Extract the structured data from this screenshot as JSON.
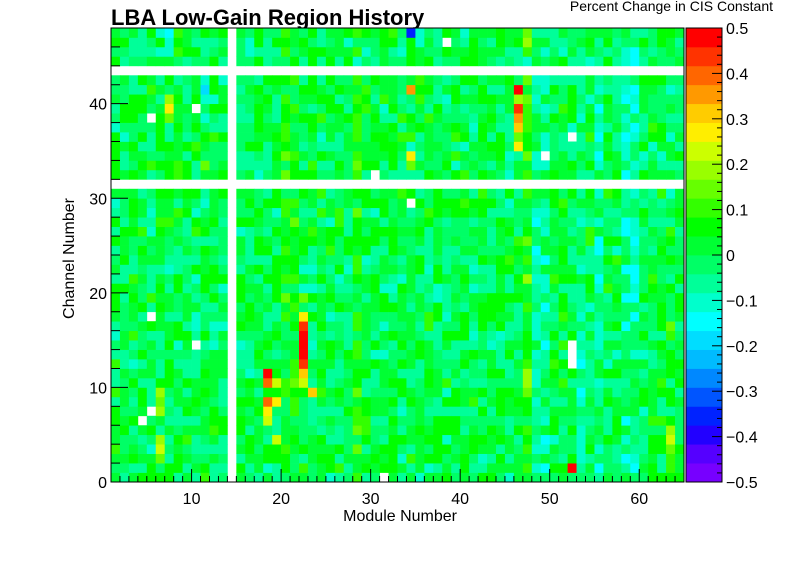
{
  "chart_data": {
    "type": "heatmap",
    "title": "LBA Low-Gain Region History",
    "xlabel": "Module Number",
    "ylabel": "Channel Number",
    "zlabel": "Percent Change in CIS Constant",
    "x_range": [
      1,
      65
    ],
    "y_range": [
      0,
      48
    ],
    "z_range": [
      -0.5,
      0.5
    ],
    "x_ticks": [
      "10",
      "20",
      "30",
      "40",
      "50",
      "60"
    ],
    "y_ticks": [
      "0",
      "10",
      "20",
      "30",
      "40"
    ],
    "z_ticks": [
      "0.5",
      "0.4",
      "0.3",
      "0.2",
      "0.1",
      "0",
      "−0.1",
      "−0.2",
      "−0.3",
      "−0.4",
      "−0.5"
    ],
    "palette": [
      "#7700ff",
      "#5500ff",
      "#2200ff",
      "#0022ff",
      "#0055ff",
      "#0088ff",
      "#00bbff",
      "#00ddff",
      "#00ffff",
      "#00ffcc",
      "#00ff99",
      "#00ff66",
      "#00ff33",
      "#00ff00",
      "#33ff00",
      "#66ff00",
      "#99ff00",
      "#ccff00",
      "#ffee00",
      "#ffcc00",
      "#ff9900",
      "#ff6600",
      "#ff3300",
      "#ff0000"
    ],
    "empty_modules": [
      14
    ],
    "empty_channels": [
      31,
      43
    ],
    "baseline_value": 0.0,
    "module_base_values": [
      {
        "module": 20,
        "value": 0.05
      },
      {
        "module": 21,
        "value": 0.04
      },
      {
        "module": 28,
        "value": 0.06
      },
      {
        "module": 47,
        "value": 0.08
      },
      {
        "module": 48,
        "value": -0.05
      },
      {
        "module": 49,
        "value": -0.05
      },
      {
        "module": 53,
        "value": -0.05
      },
      {
        "module": 55,
        "value": -0.06
      },
      {
        "module": 58,
        "value": -0.07
      },
      {
        "module": 59,
        "value": -0.07
      }
    ],
    "cells": [
      {
        "module": 22,
        "channel": 14,
        "value": 0.5
      },
      {
        "module": 22,
        "channel": 15,
        "value": 0.5
      },
      {
        "module": 22,
        "channel": 16,
        "value": 0.45
      },
      {
        "module": 22,
        "channel": 13,
        "value": 0.48
      },
      {
        "module": 22,
        "channel": 12,
        "value": 0.42
      },
      {
        "module": 22,
        "channel": 11,
        "value": 0.3
      },
      {
        "module": 22,
        "channel": 10,
        "value": 0.22
      },
      {
        "module": 22,
        "channel": 17,
        "value": 0.25
      },
      {
        "module": 22,
        "channel": 20,
        "value": -0.12
      },
      {
        "module": 22,
        "channel": 19,
        "value": 0.15
      },
      {
        "module": 23,
        "channel": 9,
        "value": 0.3
      },
      {
        "module": 18,
        "channel": 11,
        "value": 0.48
      },
      {
        "module": 18,
        "channel": 10,
        "value": 0.38
      },
      {
        "module": 18,
        "channel": 8,
        "value": 0.4
      },
      {
        "module": 18,
        "channel": 7,
        "value": 0.28
      },
      {
        "module": 18,
        "channel": 6,
        "value": 0.22
      },
      {
        "module": 19,
        "channel": 10,
        "value": 0.22
      },
      {
        "module": 19,
        "channel": 8,
        "value": 0.25
      },
      {
        "module": 19,
        "channel": 4,
        "value": 0.22
      },
      {
        "module": 19,
        "channel": 1,
        "value": -0.08
      },
      {
        "module": 18,
        "channel": 1,
        "value": -0.1
      },
      {
        "module": 46,
        "channel": 41,
        "value": 0.5
      },
      {
        "module": 46,
        "channel": 39,
        "value": 0.45
      },
      {
        "module": 46,
        "channel": 38,
        "value": 0.35
      },
      {
        "module": 46,
        "channel": 37,
        "value": 0.3
      },
      {
        "module": 46,
        "channel": 35,
        "value": 0.25
      },
      {
        "module": 46,
        "channel": 40,
        "value": 0.2
      },
      {
        "module": 46,
        "channel": 36,
        "value": 0.15
      },
      {
        "module": 47,
        "channel": 44,
        "value": -0.12
      },
      {
        "module": 47,
        "channel": 11,
        "value": 0.2
      },
      {
        "module": 47,
        "channel": 10,
        "value": 0.18
      },
      {
        "module": 47,
        "channel": 12,
        "value": 0.12
      },
      {
        "module": 34,
        "channel": 47,
        "value": -0.35
      },
      {
        "module": 34,
        "channel": 41,
        "value": 0.35
      },
      {
        "module": 34,
        "channel": 35,
        "value": -0.1
      },
      {
        "module": 34,
        "channel": 34,
        "value": 0.25
      },
      {
        "module": 34,
        "channel": 33,
        "value": 0.15
      },
      {
        "module": 28,
        "channel": 44,
        "value": -0.12
      },
      {
        "module": 28,
        "channel": 42,
        "value": 0.1
      },
      {
        "module": 28,
        "channel": 38,
        "value": 0.12
      },
      {
        "module": 28,
        "channel": 37,
        "value": 0.1
      },
      {
        "module": 28,
        "channel": 34,
        "value": 0.12
      },
      {
        "module": 7,
        "channel": 47,
        "value": -0.15
      },
      {
        "module": 7,
        "channel": 46,
        "value": -0.1
      },
      {
        "module": 7,
        "channel": 40,
        "value": 0.2
      },
      {
        "module": 7,
        "channel": 39,
        "value": 0.25
      },
      {
        "module": 7,
        "channel": 38,
        "value": 0.15
      },
      {
        "module": 11,
        "channel": 41,
        "value": -0.18
      },
      {
        "module": 11,
        "channel": 40,
        "value": -0.1
      },
      {
        "module": 11,
        "channel": 33,
        "value": 0.15
      },
      {
        "module": 6,
        "channel": 9,
        "value": 0.2
      },
      {
        "module": 6,
        "channel": 8,
        "value": 0.15
      },
      {
        "module": 6,
        "channel": 7,
        "value": 0.2
      },
      {
        "module": 6,
        "channel": 4,
        "value": 0.18
      },
      {
        "module": 6,
        "channel": 3,
        "value": 0.22
      },
      {
        "module": 6,
        "channel": 2,
        "value": 0.15
      },
      {
        "module": 52,
        "channel": 1,
        "value": 0.5
      },
      {
        "module": 55,
        "channel": 15,
        "value": -0.12
      },
      {
        "module": 55,
        "channel": 14,
        "value": -0.1
      },
      {
        "module": 63,
        "channel": 5,
        "value": 0.2
      },
      {
        "module": 63,
        "channel": 4,
        "value": 0.22
      },
      {
        "module": 63,
        "channel": 3,
        "value": 0.15
      },
      {
        "module": 63,
        "channel": 16,
        "value": 0.15
      },
      {
        "module": 63,
        "channel": 15,
        "value": 0.1
      },
      {
        "module": 63,
        "channel": 2,
        "value": 0.12
      },
      {
        "module": 26,
        "channel": 28,
        "value": 0.12
      },
      {
        "module": 33,
        "channel": 30,
        "value": 0.12
      },
      {
        "module": 56,
        "channel": 12,
        "value": -0.1
      }
    ],
    "blank_cells": [
      {
        "module": 38,
        "channel": 46
      },
      {
        "module": 5,
        "channel": 38
      },
      {
        "module": 10,
        "channel": 39
      },
      {
        "module": 52,
        "channel": 36
      },
      {
        "module": 49,
        "channel": 34
      },
      {
        "module": 30,
        "channel": 32
      },
      {
        "module": 34,
        "channel": 29
      },
      {
        "module": 5,
        "channel": 17
      },
      {
        "module": 10,
        "channel": 14
      },
      {
        "module": 52,
        "channel": 14
      },
      {
        "module": 52,
        "channel": 13
      },
      {
        "module": 52,
        "channel": 12
      },
      {
        "module": 5,
        "channel": 7
      },
      {
        "module": 4,
        "channel": 6
      },
      {
        "module": 31,
        "channel": 0
      }
    ]
  }
}
